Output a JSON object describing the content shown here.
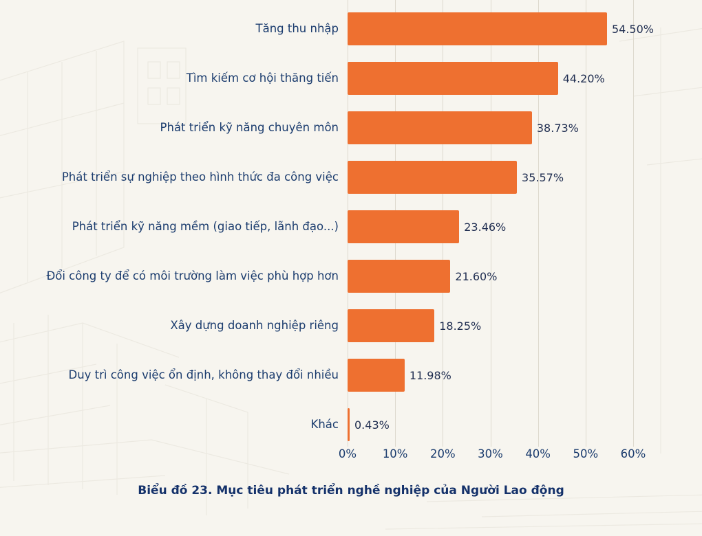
{
  "chart_data": {
    "type": "bar",
    "orientation": "horizontal",
    "title": "Biểu đồ 23. Mục tiêu phát triển nghề nghiệp của Người Lao động",
    "categories": [
      "Tăng thu nhập",
      "Tìm kiếm cơ hội thăng tiến",
      "Phát triển kỹ năng chuyên môn",
      "Phát triển sự nghiệp theo hình thức đa công việc",
      "Phát triển kỹ năng mềm (giao tiếp, lãnh đạo...)",
      "Đổi công ty để có môi trường làm việc phù hợp hơn",
      "Xây dựng doanh nghiệp riêng",
      "Duy trì công việc ổn định, không thay đổi nhiều",
      "Khác"
    ],
    "values": [
      54.5,
      44.2,
      38.73,
      35.57,
      23.46,
      21.6,
      18.25,
      11.98,
      0.43
    ],
    "value_labels": [
      "54.50%",
      "44.20%",
      "38.73%",
      "35.57%",
      "23.46%",
      "21.60%",
      "18.25%",
      "11.98%",
      "0.43%"
    ],
    "xlabel": "",
    "ylabel": "",
    "xlim": [
      0,
      60
    ],
    "x_ticks": [
      "0%",
      "10%",
      "20%",
      "30%",
      "40%",
      "50%",
      "60%"
    ],
    "grid": "vertical",
    "legend": "none",
    "colors": {
      "bar": "#ee7030",
      "label": "#1b3c6e",
      "value": "#1f2d50",
      "gridline": "#ddd9ce",
      "background": "#f7f5ef"
    }
  }
}
